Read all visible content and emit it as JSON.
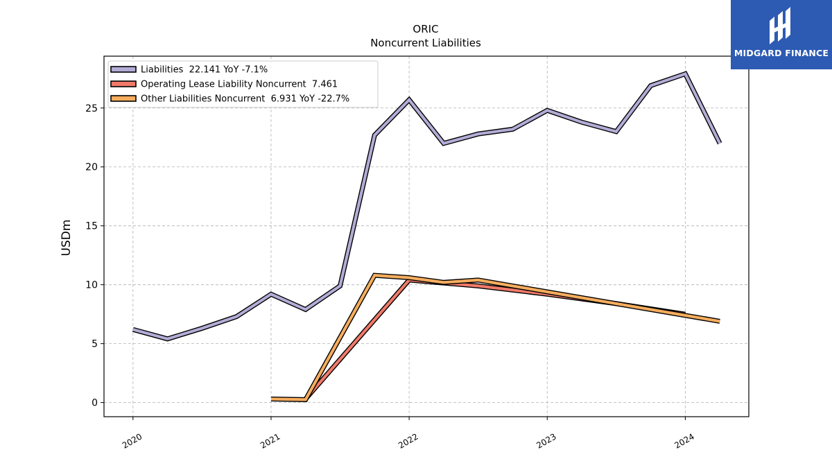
{
  "brand": {
    "name": "MIDGARD FINANCE",
    "bg_color": "#2d5bb3",
    "icon": "midgard-logo-icon"
  },
  "chart_data": {
    "type": "line",
    "title": "ORIC",
    "subtitle": "Noncurrent  Liabilities",
    "ylabel": "USDm",
    "xlabel": "",
    "xlim": [
      2019.79,
      2024.46
    ],
    "ylim": [
      -1.2,
      29.4
    ],
    "yticks": [
      0,
      5,
      10,
      15,
      20,
      25
    ],
    "xticks": [
      2020,
      2021,
      2022,
      2023,
      2024
    ],
    "xtick_labels": [
      "2020",
      "2021",
      "2022",
      "2023",
      "2024"
    ],
    "grid": true,
    "legend_position": "top-left",
    "series": [
      {
        "name": "Liabilities",
        "legend": "Liabilities  22.141 YoY -7.1%",
        "color": "#b3acd6",
        "x": [
          2020.0,
          2020.25,
          2020.5,
          2020.75,
          2021.0,
          2021.25,
          2021.5,
          2021.75,
          2022.0,
          2022.25,
          2022.5,
          2022.75,
          2023.0,
          2023.25,
          2023.5,
          2023.75,
          2024.0,
          2024.25
        ],
        "y": [
          6.2,
          5.4,
          6.3,
          7.3,
          9.2,
          7.9,
          9.9,
          22.7,
          25.7,
          22.0,
          22.8,
          23.2,
          24.8,
          23.8,
          23.0,
          26.9,
          27.9,
          22.0
        ]
      },
      {
        "name": "Operating Lease Liability Noncurrent",
        "legend": "Operating Lease Liability Noncurrent  7.461",
        "color": "#f07a6a",
        "x": [
          2021.25,
          2022.0,
          2022.5,
          2023.0,
          2023.5,
          2024.0
        ],
        "y": [
          0.3,
          10.4,
          9.9,
          9.2,
          8.4,
          7.5
        ]
      },
      {
        "name": "Other Liabilities Noncurrent",
        "legend": "Other Liabilities Noncurrent  6.931 YoY -22.7%",
        "color": "#f6ad5e",
        "x": [
          2021.0,
          2021.25,
          2021.75,
          2022.0,
          2022.25,
          2022.5,
          2022.75,
          2023.0,
          2023.25,
          2023.5,
          2023.75,
          2024.0,
          2024.25
        ],
        "y": [
          0.3,
          0.25,
          10.8,
          10.6,
          10.2,
          10.4,
          9.9,
          9.4,
          8.9,
          8.4,
          7.9,
          7.4,
          6.9
        ]
      }
    ]
  }
}
